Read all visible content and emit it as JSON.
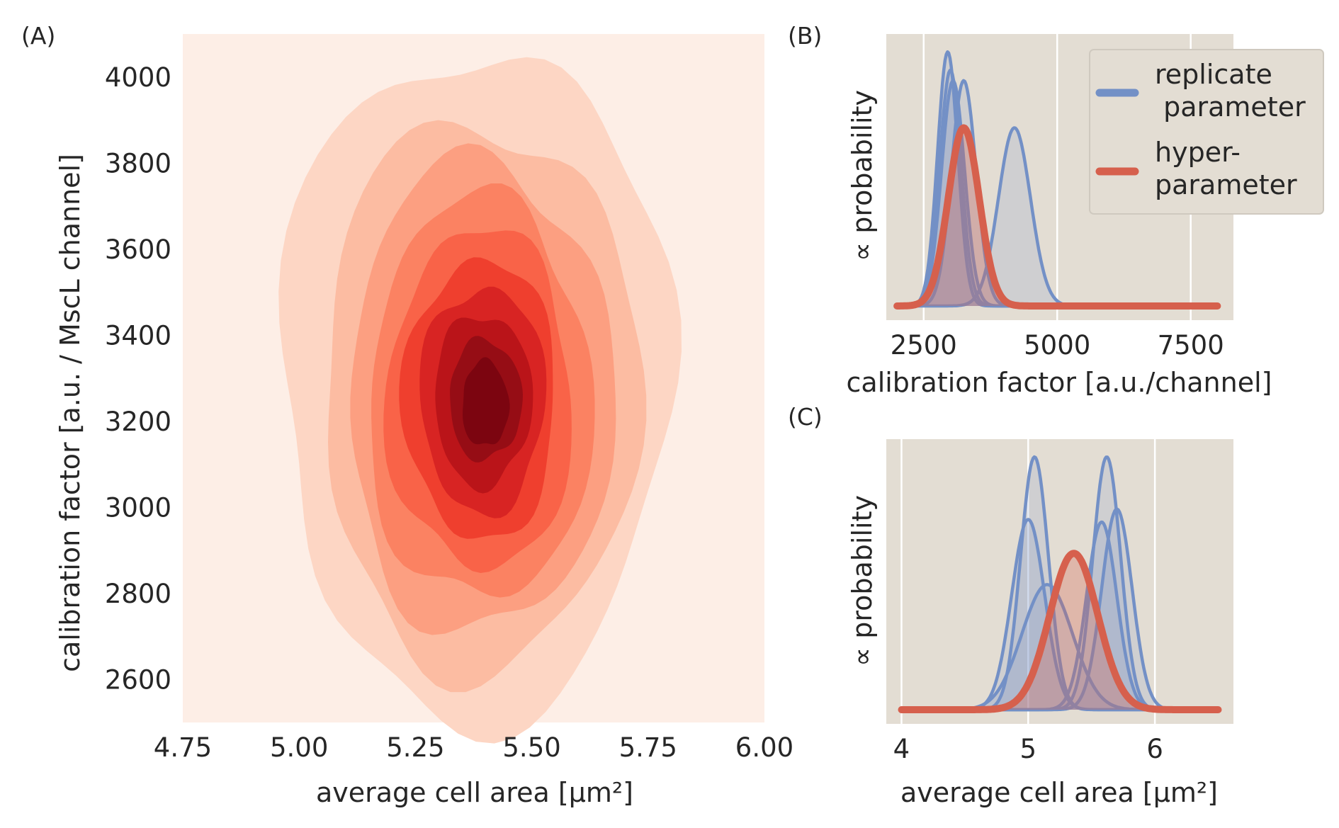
{
  "figure": {
    "panel_labels": [
      "(A)",
      "(B)",
      "(C)"
    ]
  },
  "colors": {
    "replicate": "#7390c6",
    "hyper": "#d6604d",
    "panel_bg": "#e3ddd3",
    "grid": "#ffffff",
    "contour_levels": [
      "#fdeee6",
      "#fdd6c4",
      "#fcbca2",
      "#fc9f81",
      "#fb8262",
      "#f96348",
      "#ef3f2e",
      "#d82423",
      "#ba1419",
      "#960d15",
      "#7c0510"
    ]
  },
  "chart_data": [
    {
      "type": "heatmap",
      "kind": "2d-kde-contour",
      "xlabel": "average cell area [μm²]",
      "ylabel": "calibration factor [a.u. / MscL channel]",
      "xlim": [
        4.75,
        6.0
      ],
      "ylim": [
        2500,
        4100
      ],
      "xticks": [
        "4.75",
        "5.00",
        "5.25",
        "5.50",
        "5.75",
        "6.00"
      ],
      "yticks": [
        "2600",
        "2800",
        "3000",
        "3200",
        "3400",
        "3600",
        "3800",
        "4000"
      ],
      "mode": {
        "x": 5.4,
        "y": 3250
      },
      "contours": [
        {
          "level": 1,
          "cx": 5.38,
          "cy": 3290,
          "rx": 0.42,
          "ry": 780
        },
        {
          "level": 2,
          "cx": 5.39,
          "cy": 3260,
          "rx": 0.34,
          "ry": 640
        },
        {
          "level": 3,
          "cx": 5.39,
          "cy": 3255,
          "rx": 0.285,
          "ry": 550
        },
        {
          "level": 4,
          "cx": 5.39,
          "cy": 3250,
          "rx": 0.24,
          "ry": 470
        },
        {
          "level": 5,
          "cx": 5.39,
          "cy": 3250,
          "rx": 0.2,
          "ry": 395
        },
        {
          "level": 6,
          "cx": 5.39,
          "cy": 3250,
          "rx": 0.165,
          "ry": 325
        },
        {
          "level": 7,
          "cx": 5.395,
          "cy": 3250,
          "rx": 0.135,
          "ry": 262
        },
        {
          "level": 8,
          "cx": 5.395,
          "cy": 3250,
          "rx": 0.105,
          "ry": 200
        },
        {
          "level": 9,
          "cx": 5.4,
          "cy": 3250,
          "rx": 0.078,
          "ry": 140
        },
        {
          "level": 10,
          "cx": 5.4,
          "cy": 3240,
          "rx": 0.05,
          "ry": 100
        }
      ]
    },
    {
      "type": "line",
      "kind": "filled-density",
      "xlabel": "calibration factor [a.u./channel]",
      "ylabel": "∝ probability",
      "xlim": [
        1800,
        8300
      ],
      "xticks": [
        "2500",
        "5000",
        "7500"
      ],
      "xtick_values": [
        2500,
        5000,
        7500
      ],
      "x_range": [
        2000,
        8000
      ],
      "legend": {
        "position": "upper-right",
        "entries": [
          {
            "label_lines": [
              "replicate",
              " parameter"
            ],
            "series": "replicate"
          },
          {
            "label_lines": [
              "hyper-",
              "parameter"
            ],
            "series": "hyper"
          }
        ]
      },
      "series": [
        {
          "group": "replicate",
          "mean": 2950,
          "sd": 190,
          "height": 0.97
        },
        {
          "group": "replicate",
          "mean": 3000,
          "sd": 200,
          "height": 0.9
        },
        {
          "group": "replicate",
          "mean": 3050,
          "sd": 215,
          "height": 0.86
        },
        {
          "group": "replicate",
          "mean": 3250,
          "sd": 230,
          "height": 0.86
        },
        {
          "group": "replicate",
          "mean": 4200,
          "sd": 300,
          "height": 0.68
        },
        {
          "group": "hyper",
          "mean": 3250,
          "sd": 290,
          "height": 0.68
        }
      ]
    },
    {
      "type": "line",
      "kind": "filled-density",
      "xlabel": "average cell area [μm²]",
      "ylabel": "∝ probability",
      "xlim": [
        3.88,
        6.62
      ],
      "xticks": [
        "4",
        "5",
        "6"
      ],
      "xtick_values": [
        4,
        5,
        6
      ],
      "x_range": [
        4.0,
        6.5
      ],
      "series": [
        {
          "group": "replicate",
          "mean": 5.05,
          "sd": 0.11,
          "height": 0.97
        },
        {
          "group": "replicate",
          "mean": 5.0,
          "sd": 0.13,
          "height": 0.73
        },
        {
          "group": "replicate",
          "mean": 5.15,
          "sd": 0.2,
          "height": 0.48
        },
        {
          "group": "replicate",
          "mean": 5.62,
          "sd": 0.11,
          "height": 0.97
        },
        {
          "group": "replicate",
          "mean": 5.58,
          "sd": 0.12,
          "height": 0.72
        },
        {
          "group": "replicate",
          "mean": 5.7,
          "sd": 0.12,
          "height": 0.77
        },
        {
          "group": "hyper",
          "mean": 5.36,
          "sd": 0.19,
          "height": 0.6
        }
      ]
    }
  ]
}
